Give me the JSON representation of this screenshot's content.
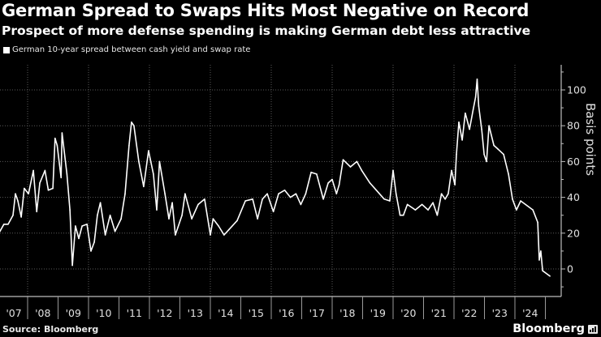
{
  "header": {
    "title": "German Spread to Swaps Hits Most Negative on Record",
    "subtitle": "Prospect of more defense spending is making German debt less attractive"
  },
  "footer": {
    "source": "Source: Bloomberg",
    "brand": "Bloomberg",
    "brand_icon": "bar-chart-icon"
  },
  "chart_data": {
    "type": "line",
    "title": "German Spread to Swaps Hits Most Negative on Record",
    "subtitle": "Prospect of more defense spending is making German debt less attractive",
    "xlabel": "",
    "ylabel": "Basis points",
    "legend": {
      "position": "top-left",
      "entries": [
        "German 10-year spread between cash yield and swap rate"
      ]
    },
    "x_tick_labels": [
      "'07",
      "'08",
      "'09",
      "'10",
      "'11",
      "'12",
      "'13",
      "'14",
      "'15",
      "'16",
      "'17",
      "'18",
      "'19",
      "'20",
      "'21",
      "'22",
      "'23",
      "'24"
    ],
    "y_ticks": [
      0,
      20,
      40,
      60,
      80,
      100
    ],
    "ylim": [
      -8,
      112
    ],
    "xlim": [
      2007.09,
      2025.4
    ],
    "grid": {
      "horizontal": true,
      "vertical": "every two years"
    },
    "y_axis_side": "right",
    "series": [
      {
        "name": "German 10-year spread between cash yield and swap rate",
        "color": "#ffffff",
        "x": [
          2007.09,
          2007.22,
          2007.36,
          2007.52,
          2007.6,
          2007.68,
          2007.79,
          2007.89,
          2008.03,
          2008.19,
          2008.3,
          2008.4,
          2008.57,
          2008.68,
          2008.83,
          2008.9,
          2008.97,
          2009.1,
          2009.13,
          2009.29,
          2009.39,
          2009.47,
          2009.57,
          2009.68,
          2009.79,
          2009.95,
          2010.08,
          2010.19,
          2010.29,
          2010.39,
          2010.55,
          2010.71,
          2010.87,
          2011.07,
          2011.2,
          2011.33,
          2011.41,
          2011.49,
          2011.65,
          2011.81,
          2011.97,
          2012.13,
          2012.24,
          2012.33,
          2012.51,
          2012.64,
          2012.75,
          2012.85,
          2013.07,
          2013.17,
          2013.39,
          2013.6,
          2013.81,
          2014.0,
          2014.09,
          2014.27,
          2014.45,
          2014.61,
          2014.88,
          2015.15,
          2015.39,
          2015.55,
          2015.71,
          2015.87,
          2016.07,
          2016.24,
          2016.44,
          2016.63,
          2016.81,
          2016.97,
          2017.13,
          2017.31,
          2017.49,
          2017.71,
          2017.87,
          2018.0,
          2018.14,
          2018.23,
          2018.36,
          2018.6,
          2018.81,
          2018.97,
          2019.24,
          2019.45,
          2019.71,
          2019.89,
          2020.0,
          2020.1,
          2020.23,
          2020.34,
          2020.47,
          2020.73,
          2020.95,
          2021.15,
          2021.31,
          2021.45,
          2021.59,
          2021.71,
          2021.81,
          2021.92,
          2022.03,
          2022.08,
          2022.16,
          2022.27,
          2022.37,
          2022.51,
          2022.63,
          2022.71,
          2022.76,
          2022.81,
          2022.91,
          2022.99,
          2023.07,
          2023.15,
          2023.31,
          2023.44,
          2023.63,
          2023.79,
          2023.92,
          2024.05,
          2024.19,
          2024.59,
          2024.75,
          2024.8,
          2024.85,
          2024.91,
          2025.07,
          2025.15
        ],
        "values": [
          21,
          25,
          25,
          30,
          42,
          38,
          29,
          45,
          42,
          55,
          32,
          48,
          55,
          44,
          45,
          73,
          69,
          51,
          76,
          53,
          33,
          2,
          24,
          17,
          24,
          25,
          10,
          15,
          30,
          37,
          19,
          30,
          21,
          28,
          42,
          69,
          82,
          80,
          60,
          46,
          66,
          53,
          33,
          60,
          42,
          28,
          37,
          19,
          30,
          42,
          28,
          36,
          39,
          19,
          28,
          24,
          19,
          22,
          27,
          38,
          39,
          28,
          39,
          42,
          32,
          42,
          44,
          40,
          42,
          36,
          42,
          54,
          53,
          39,
          48,
          50,
          42,
          47,
          61,
          57,
          60,
          55,
          48,
          44,
          39,
          38,
          55,
          42,
          30,
          30,
          36,
          33,
          36,
          33,
          37,
          30,
          42,
          39,
          42,
          55,
          47,
          64,
          82,
          72,
          87,
          78,
          89,
          96,
          106,
          91,
          78,
          64,
          60,
          80,
          69,
          67,
          64,
          53,
          39,
          33,
          38,
          33,
          26,
          5,
          10,
          -1,
          -3,
          -4
        ]
      }
    ]
  }
}
